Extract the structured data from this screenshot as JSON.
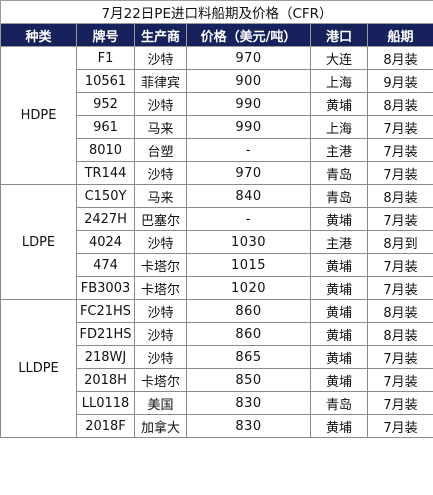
{
  "title": "7月22日PE进口料船期及价格（CFR）",
  "headers": [
    "种类",
    "牌号",
    "生产商",
    "价格（美元/吨）",
    "港口",
    "船期"
  ],
  "groups": [
    {
      "category": "HDPE",
      "rows": [
        {
          "grade": "F1",
          "producer": "沙特",
          "price": "970",
          "port": "大连",
          "shipment": "8月装"
        },
        {
          "grade": "10561",
          "producer": "菲律宾",
          "price": "900",
          "port": "上海",
          "shipment": "9月装"
        },
        {
          "grade": "952",
          "producer": "沙特",
          "price": "990",
          "port": "黄埔",
          "shipment": "8月装"
        },
        {
          "grade": "961",
          "producer": "马来",
          "price": "990",
          "port": "上海",
          "shipment": "7月装"
        },
        {
          "grade": "8010",
          "producer": "台塑",
          "price": "-",
          "port": "主港",
          "shipment": "7月装"
        },
        {
          "grade": "TR144",
          "producer": "沙特",
          "price": "970",
          "port": "青岛",
          "shipment": "7月装"
        }
      ]
    },
    {
      "category": "LDPE",
      "rows": [
        {
          "grade": "C150Y",
          "producer": "马来",
          "price": "840",
          "port": "青岛",
          "shipment": "8月装"
        },
        {
          "grade": "2427H",
          "producer": "巴塞尔",
          "price": "-",
          "port": "黄埔",
          "shipment": "7月装"
        },
        {
          "grade": "4024",
          "producer": "沙特",
          "price": "1030",
          "port": "主港",
          "shipment": "8月到"
        },
        {
          "grade": "474",
          "producer": "卡塔尔",
          "price": "1015",
          "port": "黄埔",
          "shipment": "7月装"
        },
        {
          "grade": "FB3003",
          "producer": "卡塔尔",
          "price": "1020",
          "port": "黄埔",
          "shipment": "7月装"
        }
      ]
    },
    {
      "category": "LLDPE",
      "rows": [
        {
          "grade": "FC21HS",
          "producer": "沙特",
          "price": "860",
          "port": "黄埔",
          "shipment": "8月装"
        },
        {
          "grade": "FD21HS",
          "producer": "沙特",
          "price": "860",
          "port": "黄埔",
          "shipment": "8月装"
        },
        {
          "grade": "218WJ",
          "producer": "沙特",
          "price": "865",
          "port": "黄埔",
          "shipment": "7月装"
        },
        {
          "grade": "2018H",
          "producer": "卡塔尔",
          "price": "850",
          "port": "黄埔",
          "shipment": "7月装"
        },
        {
          "grade": "LL0118",
          "producer": "美国",
          "price": "830",
          "port": "青岛",
          "shipment": "7月装"
        },
        {
          "grade": "2018F",
          "producer": "加拿大",
          "price": "830",
          "port": "黄埔",
          "shipment": "7月装"
        }
      ]
    }
  ],
  "colors": {
    "header_bg": "#17215c",
    "header_text": "#ffffff",
    "border": "#8a8a8a"
  }
}
